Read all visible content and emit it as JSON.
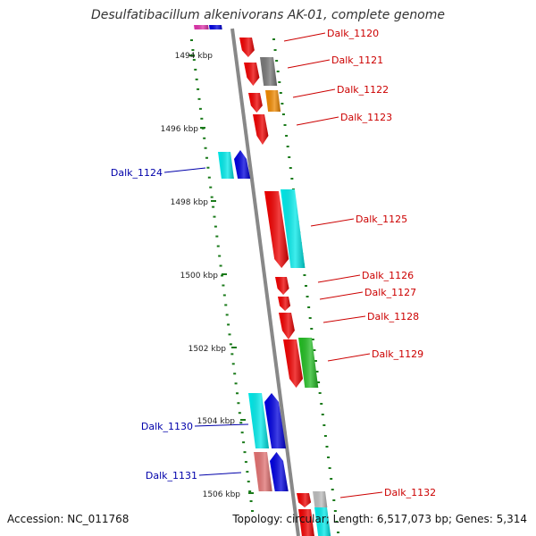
{
  "title": "Desulfatibacillum alkenivorans AK-01, complete genome",
  "footer": {
    "accession": "Accession: NC_011768",
    "topology": "Topology: circular; Length: 6,517,073 bp; Genes: 5,314"
  },
  "ticks": [
    "1494 kbp",
    "1496 kbp",
    "1498 kbp",
    "1500 kbp",
    "1502 kbp",
    "1504 kbp",
    "1506 kbp"
  ],
  "colors": {
    "red": "#ee0000",
    "cyan": "#00e8e8",
    "blue": "#0000dd",
    "gray": "#777777",
    "orange": "#ee8800",
    "green": "#22bb22",
    "pink": "#e07070",
    "magenta": "#dd33aa",
    "lightgray": "#bbbbbb",
    "label_forward": "#cc0000",
    "label_reverse": "#0000aa",
    "backbone": "#888888",
    "dots": "#1a7a1a"
  },
  "genes": [
    {
      "label": "Dalk_1120",
      "strand": "right",
      "color_key": "red"
    },
    {
      "label": "Dalk_1121",
      "strand": "right",
      "color_key": "red"
    },
    {
      "label": "Dalk_1122",
      "strand": "right",
      "color_key": "red"
    },
    {
      "label": "Dalk_1123",
      "strand": "right",
      "color_key": "red"
    },
    {
      "label": "Dalk_1124",
      "strand": "left",
      "color_key": "blue"
    },
    {
      "label": "Dalk_1125",
      "strand": "right",
      "color_key": "red"
    },
    {
      "label": "Dalk_1126",
      "strand": "right",
      "color_key": "red"
    },
    {
      "label": "Dalk_1127",
      "strand": "right",
      "color_key": "red"
    },
    {
      "label": "Dalk_1128",
      "strand": "right",
      "color_key": "red"
    },
    {
      "label": "Dalk_1129",
      "strand": "right",
      "color_key": "red"
    },
    {
      "label": "Dalk_1130",
      "strand": "left",
      "color_key": "blue"
    },
    {
      "label": "Dalk_1131",
      "strand": "left",
      "color_key": "blue"
    },
    {
      "label": "Dalk_1132",
      "strand": "right",
      "color_key": "red"
    }
  ]
}
